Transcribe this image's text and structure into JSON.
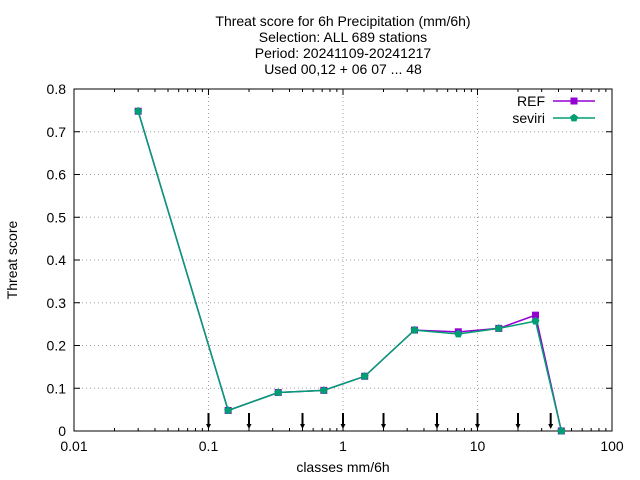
{
  "chart_data": {
    "type": "line",
    "title_lines": [
      "Threat score  for 6h Precipitation (mm/6h)",
      "Selection: ALL    689 stations",
      "Period: 20241109-20241217",
      "Used 00,12 + 06 07 ... 48"
    ],
    "xlabel": "classes mm/6h",
    "ylabel": "Threat score",
    "xscale": "log",
    "xlim": [
      0.01,
      100
    ],
    "ylim": [
      0,
      0.8
    ],
    "xticks": [
      {
        "value": 0.01,
        "label": "0.01"
      },
      {
        "value": 0.1,
        "label": "0.1"
      },
      {
        "value": 1,
        "label": "1"
      },
      {
        "value": 10,
        "label": "10"
      },
      {
        "value": 100,
        "label": "100"
      }
    ],
    "yticks": [
      {
        "value": 0,
        "label": "0"
      },
      {
        "value": 0.1,
        "label": "0.1"
      },
      {
        "value": 0.2,
        "label": "0.2"
      },
      {
        "value": 0.3,
        "label": "0.3"
      },
      {
        "value": 0.4,
        "label": "0.4"
      },
      {
        "value": 0.5,
        "label": "0.5"
      },
      {
        "value": 0.6,
        "label": "0.6"
      },
      {
        "value": 0.7,
        "label": "0.7"
      },
      {
        "value": 0.8,
        "label": "0.8"
      }
    ],
    "grid": true,
    "legend_position": "top-right",
    "series": [
      {
        "name": "REF",
        "color": "#9400d3",
        "marker": "square",
        "x": [
          0.03,
          0.14,
          0.33,
          0.72,
          1.45,
          3.4,
          7.2,
          14.4,
          27,
          42
        ],
        "y": [
          0.748,
          0.048,
          0.09,
          0.095,
          0.128,
          0.236,
          0.232,
          0.24,
          0.271,
          0.0
        ]
      },
      {
        "name": "seviri",
        "color": "#009e73",
        "marker": "pentagon",
        "x": [
          0.03,
          0.14,
          0.33,
          0.72,
          1.45,
          3.4,
          7.2,
          14.4,
          27,
          42
        ],
        "y": [
          0.748,
          0.048,
          0.09,
          0.095,
          0.128,
          0.236,
          0.227,
          0.24,
          0.257,
          0.0
        ]
      }
    ],
    "threshold_arrows": [
      0.1,
      0.2,
      0.5,
      1,
      2,
      5,
      10,
      20,
      35
    ]
  }
}
